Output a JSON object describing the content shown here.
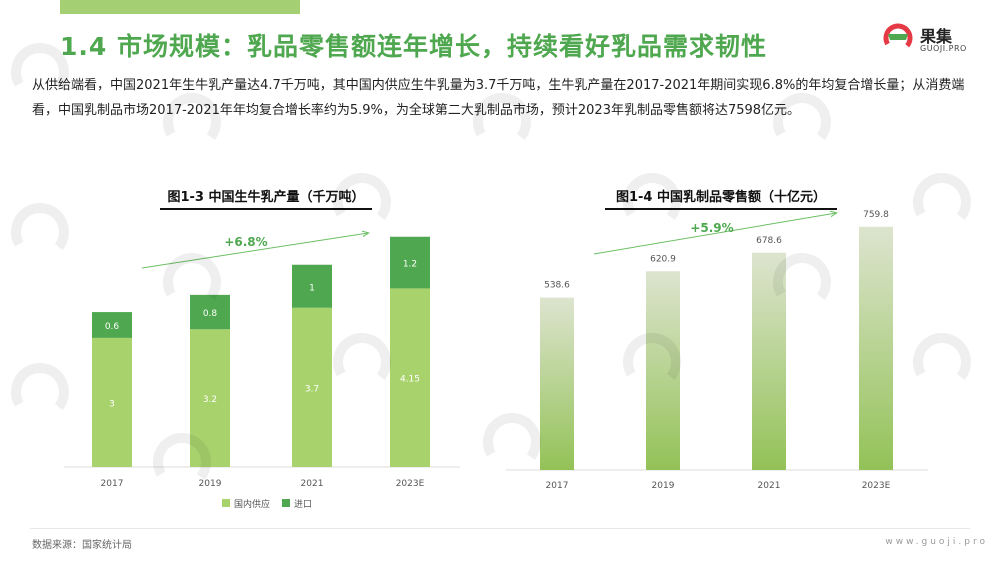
{
  "header": {
    "title": "1.4 市场规模：乳品零售额连年增长，持续看好乳品需求韧性",
    "logo_name": "果集",
    "logo_sub": "GUOJI.PRO"
  },
  "intro": "从供给端看，中国2021年生牛乳产量达4.7千万吨，其中国内供应生牛乳量为3.7千万吨，生牛乳产量在2017-2021年期间实现6.8%的年均复合增长量；从消费端看，中国乳制品市场2017-2021年年均复合增长率约为5.9%，为全球第二大乳制品市场，预计2023年乳制品零售额将达7598亿元。",
  "chart_data": [
    {
      "type": "bar",
      "stacked": true,
      "title": "图1-3 中国生牛乳产量（千万吨）",
      "categories": [
        "2017",
        "2019",
        "2021",
        "2023E"
      ],
      "series": [
        {
          "name": "国内供应",
          "values": [
            3,
            3.2,
            3.7,
            4.15
          ],
          "labels": [
            "3",
            "3.2",
            "3.7",
            "4.15"
          ],
          "color": "#a8d26c"
        },
        {
          "name": "进口",
          "values": [
            0.6,
            0.8,
            1,
            1.2
          ],
          "labels": [
            "0.6",
            "0.8",
            "1",
            "1.2"
          ],
          "color": "#4fa84f"
        }
      ],
      "annotation": "+6.8%",
      "ylim": [
        0,
        5.6
      ],
      "legend": "bottom"
    },
    {
      "type": "bar",
      "title": "图1-4 中国乳制品零售额（十亿元）",
      "categories": [
        "2017",
        "2019",
        "2021",
        "2023E"
      ],
      "values": [
        538.6,
        620.9,
        678.6,
        759.8
      ],
      "labels": [
        "538.6",
        "620.9",
        "678.6",
        "759.8"
      ],
      "annotation": "+5.9%",
      "ylim": [
        0,
        856
      ],
      "colors": {
        "top": "#dde4cf",
        "bottom": "#93c257"
      }
    }
  ],
  "footer": {
    "source": "数据来源：国家统计局",
    "site": "www.guoji.pro"
  }
}
